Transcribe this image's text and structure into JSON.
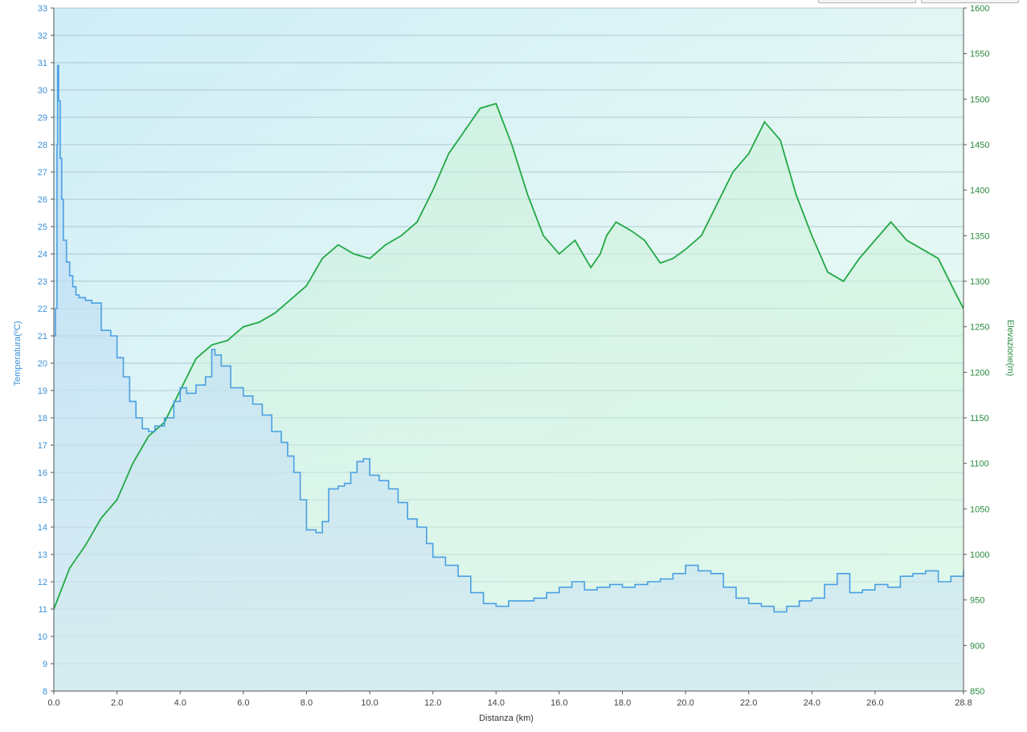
{
  "chart_data": {
    "type": "line",
    "xlabel": "Distanza  (km)",
    "ylabel_left": "Temperatura(ºC)",
    "ylabel_right": "Elevazione(m)",
    "x_ticks": [
      "0.0",
      "2.0",
      "4.0",
      "6.0",
      "8.0",
      "10.0",
      "12.0",
      "14.0",
      "16.0",
      "18.0",
      "20.0",
      "22.0",
      "24.0",
      "26.0",
      "28.8"
    ],
    "xlim": [
      0,
      28.8
    ],
    "ylim_left": [
      8,
      33
    ],
    "ylim_right": [
      850,
      1600
    ],
    "y_ticks_left": [
      8,
      9,
      10,
      11,
      12,
      13,
      14,
      15,
      16,
      17,
      18,
      19,
      20,
      21,
      22,
      23,
      24,
      25,
      26,
      27,
      28,
      29,
      30,
      31,
      32,
      33
    ],
    "y_ticks_right": [
      850,
      900,
      950,
      1000,
      1050,
      1100,
      1150,
      1200,
      1250,
      1300,
      1350,
      1400,
      1450,
      1500,
      1550,
      1600
    ],
    "grid": true,
    "series": [
      {
        "name": "Temperatura",
        "axis": "left",
        "color": "#4a9fe3",
        "x": [
          0,
          0.05,
          0.1,
          0.12,
          0.15,
          0.2,
          0.25,
          0.3,
          0.4,
          0.5,
          0.6,
          0.7,
          0.8,
          1.0,
          1.2,
          1.5,
          1.8,
          2.0,
          2.2,
          2.4,
          2.6,
          2.8,
          3.0,
          3.2,
          3.5,
          3.8,
          4.0,
          4.2,
          4.5,
          4.8,
          5.0,
          5.1,
          5.3,
          5.6,
          6.0,
          6.3,
          6.6,
          6.9,
          7.2,
          7.4,
          7.6,
          7.8,
          8.0,
          8.3,
          8.5,
          8.7,
          9.0,
          9.2,
          9.4,
          9.6,
          9.8,
          10.0,
          10.3,
          10.6,
          10.9,
          11.2,
          11.5,
          11.8,
          12.0,
          12.4,
          12.8,
          13.2,
          13.6,
          14.0,
          14.4,
          14.8,
          15.2,
          15.6,
          16.0,
          16.4,
          16.8,
          17.2,
          17.6,
          18.0,
          18.4,
          18.8,
          19.2,
          19.6,
          20.0,
          20.4,
          20.8,
          21.2,
          21.6,
          22.0,
          22.4,
          22.8,
          23.2,
          23.6,
          24.0,
          24.4,
          24.8,
          25.2,
          25.6,
          26.0,
          26.4,
          26.8,
          27.2,
          27.6,
          28.0,
          28.4,
          28.8
        ],
        "values": [
          21,
          22,
          28,
          30.9,
          29.6,
          27.5,
          26,
          24.5,
          23.7,
          23.2,
          22.8,
          22.5,
          22.4,
          22.3,
          22.2,
          21.2,
          21.0,
          20.2,
          19.5,
          18.6,
          18.0,
          17.6,
          17.5,
          17.7,
          18.0,
          18.6,
          19.1,
          18.9,
          19.2,
          19.5,
          20.5,
          20.3,
          19.9,
          19.1,
          18.8,
          18.5,
          18.1,
          17.5,
          17.1,
          16.6,
          16.0,
          15.0,
          13.9,
          13.8,
          14.2,
          15.4,
          15.5,
          15.6,
          16.0,
          16.4,
          16.5,
          15.9,
          15.7,
          15.4,
          14.9,
          14.3,
          14.0,
          13.4,
          12.9,
          12.6,
          12.2,
          11.6,
          11.2,
          11.1,
          11.3,
          11.3,
          11.4,
          11.6,
          11.8,
          12.0,
          11.7,
          11.8,
          11.9,
          11.8,
          11.9,
          12.0,
          12.1,
          12.3,
          12.6,
          12.4,
          12.3,
          11.8,
          11.4,
          11.2,
          11.1,
          10.9,
          11.1,
          11.3,
          11.4,
          11.9,
          12.3,
          11.6,
          11.7,
          11.9,
          11.8,
          12.2,
          12.3,
          12.4,
          12.0,
          12.2,
          12.4
        ]
      },
      {
        "name": "Elevazione",
        "axis": "right",
        "color": "#22a844",
        "x": [
          0,
          0.5,
          1.0,
          1.5,
          2.0,
          2.5,
          3.0,
          3.5,
          4.0,
          4.5,
          5.0,
          5.5,
          6.0,
          6.5,
          7.0,
          7.5,
          8.0,
          8.5,
          9.0,
          9.5,
          10.0,
          10.5,
          11.0,
          11.5,
          12.0,
          12.5,
          13.0,
          13.5,
          14.0,
          14.5,
          15.0,
          15.5,
          16.0,
          16.5,
          17.0,
          17.3,
          17.5,
          17.8,
          18.3,
          18.7,
          19.2,
          19.6,
          20.0,
          20.5,
          21.0,
          21.5,
          22.0,
          22.5,
          23.0,
          23.5,
          24.0,
          24.5,
          25.0,
          25.5,
          26.0,
          26.5,
          27.0,
          27.5,
          28.0,
          28.5,
          28.8
        ],
        "values": [
          940,
          985,
          1010,
          1040,
          1060,
          1100,
          1130,
          1145,
          1180,
          1215,
          1230,
          1235,
          1250,
          1255,
          1265,
          1280,
          1295,
          1325,
          1340,
          1330,
          1325,
          1340,
          1350,
          1365,
          1400,
          1440,
          1465,
          1490,
          1495,
          1450,
          1395,
          1350,
          1330,
          1345,
          1315,
          1330,
          1350,
          1365,
          1355,
          1345,
          1320,
          1325,
          1335,
          1350,
          1385,
          1420,
          1440,
          1475,
          1455,
          1395,
          1350,
          1310,
          1300,
          1325,
          1345,
          1365,
          1345,
          1335,
          1325,
          1290,
          1270
        ]
      }
    ]
  }
}
